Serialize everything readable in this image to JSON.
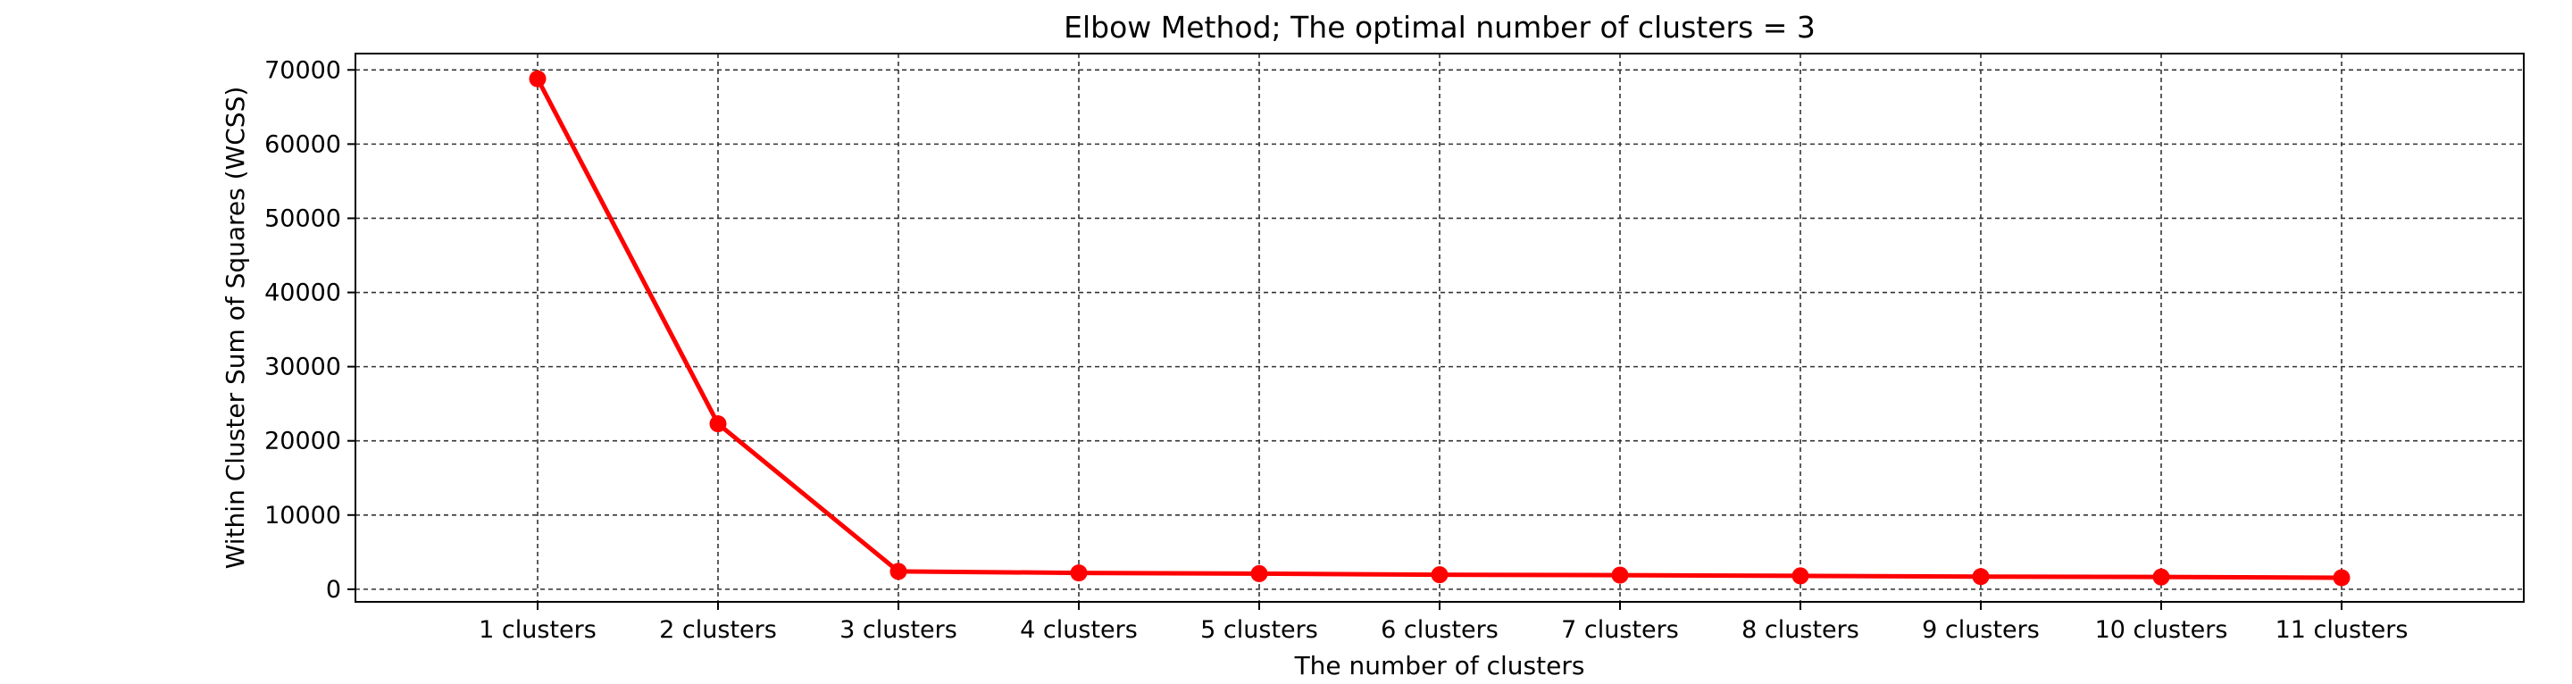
{
  "chart_data": {
    "type": "line",
    "title": "Elbow Method; The optimal number of clusters = 3",
    "xlabel": "The number of clusters",
    "ylabel": "Within Cluster Sum of Squares (WCSS)",
    "categories": [
      "1 clusters",
      "2 clusters",
      "3 clusters",
      "4 clusters",
      "5 clusters",
      "6 clusters",
      "7 clusters",
      "8 clusters",
      "9 clusters",
      "10 clusters",
      "11 clusters"
    ],
    "series": [
      {
        "values": [
          68800,
          22300,
          2400,
          2200,
          2100,
          1950,
          1900,
          1800,
          1700,
          1650,
          1550
        ],
        "color": "#ff0000",
        "marker": "circle"
      }
    ],
    "yticks": [
      0,
      10000,
      20000,
      30000,
      40000,
      50000,
      60000,
      70000
    ],
    "ylim": [
      -1700,
      72200
    ],
    "grid": true,
    "grid_style": "dashed",
    "grid_color": "#333333",
    "legend": "none"
  }
}
